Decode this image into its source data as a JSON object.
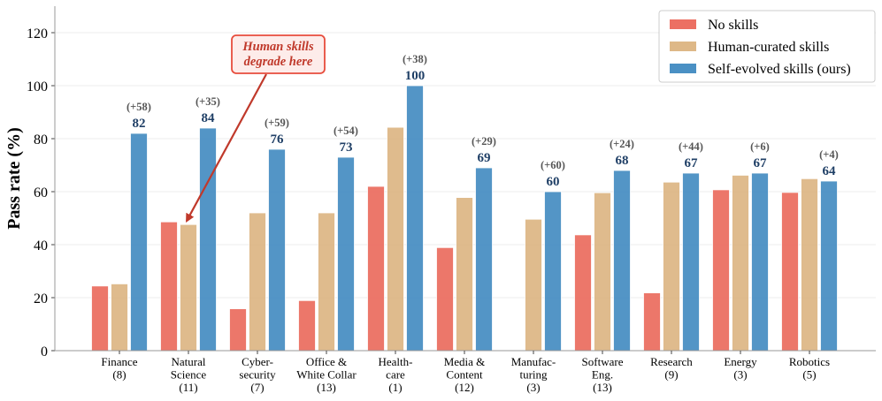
{
  "chart_data": {
    "type": "bar",
    "ylabel": "Pass rate (%)",
    "ylim": [
      0,
      130
    ],
    "yticks": [
      0,
      20,
      40,
      60,
      80,
      100,
      120
    ],
    "grid": "horizontal",
    "legend_placement": "top-right",
    "categories": [
      [
        "Finance",
        "(8)"
      ],
      [
        "Natural",
        "Science",
        "(11)"
      ],
      [
        "Cyber-",
        "security",
        "(7)"
      ],
      [
        "Office &",
        "White Collar",
        "(13)"
      ],
      [
        "Health-",
        "care",
        "(1)"
      ],
      [
        "Media &",
        "Content",
        "(12)"
      ],
      [
        "Manufac-",
        "turing",
        "(3)"
      ],
      [
        "Software",
        "Eng.",
        "(13)"
      ],
      [
        "Research",
        "(9)"
      ],
      [
        "Energy",
        "(3)"
      ],
      [
        "Robotics",
        "(5)"
      ]
    ],
    "series": [
      {
        "name": "No skills",
        "color": "#ec7063",
        "values": [
          24.4,
          48.6,
          15.8,
          18.9,
          62.0,
          38.9,
          0,
          43.7,
          21.8,
          60.7,
          59.7
        ]
      },
      {
        "name": "Human-curated skills",
        "color": "#deb887",
        "values": [
          25.2,
          47.6,
          52.0,
          52.0,
          84.3,
          57.8,
          49.6,
          59.6,
          63.6,
          66.2,
          64.9
        ]
      },
      {
        "name": "Self-evolved skills (ours)",
        "color": "#4a90c4",
        "values": [
          82,
          84,
          76,
          73,
          100,
          69,
          60,
          68,
          67,
          67,
          64
        ]
      }
    ],
    "value_labels": [
      "82",
      "84",
      "76",
      "73",
      "100",
      "69",
      "60",
      "68",
      "67",
      "67",
      "64"
    ],
    "delta_labels": [
      "(+58)",
      "(+35)",
      "(+59)",
      "(+54)",
      "(+38)",
      "(+29)",
      "(+60)",
      "(+24)",
      "(+44)",
      "(+6)",
      "(+4)"
    ],
    "annotation": {
      "lines": [
        "Human skills",
        "degrade here"
      ],
      "target_category_index": 1,
      "color": "#c0392b"
    }
  }
}
